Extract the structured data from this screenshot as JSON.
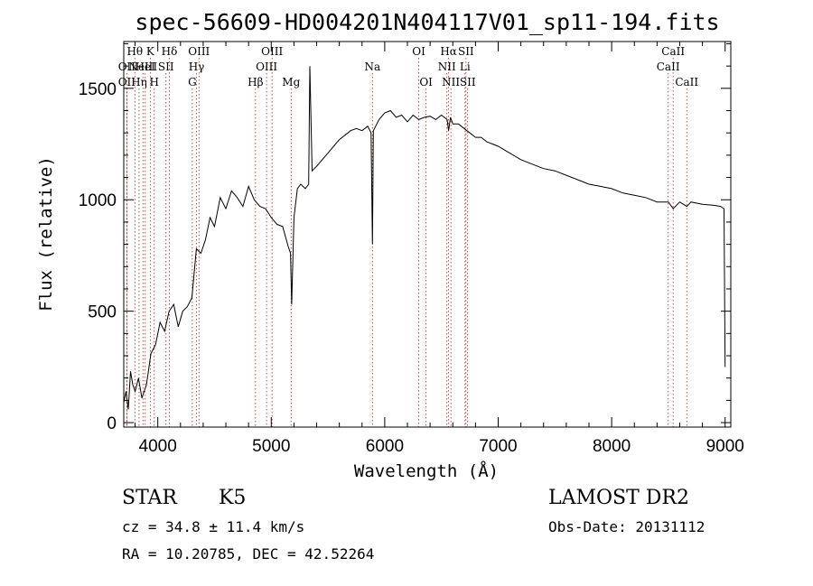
{
  "chart_data": {
    "type": "line",
    "title": "spec-56609-HD004201N404117V01_sp11-194.fits",
    "xlabel": "Wavelength (Å)",
    "ylabel": "Flux (relative)",
    "xlim": [
      3700,
      9050
    ],
    "ylim": [
      -20,
      1710
    ],
    "xticks": [
      4000,
      5000,
      6000,
      7000,
      8000,
      9000
    ],
    "yticks": [
      0,
      500,
      1000,
      1500
    ],
    "grid": false,
    "legend": "none",
    "line_color": "#000000",
    "marker_line_color": "#b22222",
    "series": [
      {
        "x": [
          3700,
          3720,
          3740,
          3760,
          3780,
          3800,
          3830,
          3860,
          3900,
          3940,
          3980,
          4020,
          4060,
          4100,
          4140,
          4180,
          4220,
          4260,
          4300,
          4340,
          4380,
          4420,
          4460,
          4500,
          4550,
          4600,
          4650,
          4700,
          4750,
          4800,
          4850,
          4900,
          4950,
          5000,
          5050,
          5100,
          5150,
          5170,
          5180,
          5200,
          5230,
          5260,
          5300,
          5330,
          5340,
          5360,
          5400,
          5450,
          5500,
          5550,
          5600,
          5650,
          5700,
          5750,
          5800,
          5850,
          5880,
          5892,
          5900,
          5910,
          5950,
          6000,
          6050,
          6100,
          6150,
          6200,
          6250,
          6300,
          6350,
          6400,
          6450,
          6500,
          6550,
          6563,
          6580,
          6600,
          6650,
          6700,
          6750,
          6800,
          6850,
          6900,
          6950,
          7000,
          7100,
          7200,
          7300,
          7400,
          7500,
          7600,
          7700,
          7800,
          7900,
          8000,
          8100,
          8200,
          8300,
          8400,
          8500,
          8542,
          8600,
          8662,
          8700,
          8800,
          8900,
          8960,
          8990,
          9000
        ],
        "y": [
          90,
          140,
          60,
          230,
          170,
          140,
          200,
          110,
          170,
          310,
          350,
          450,
          410,
          500,
          530,
          430,
          500,
          520,
          560,
          780,
          760,
          820,
          920,
          880,
          1010,
          960,
          1040,
          1010,
          970,
          1060,
          1000,
          970,
          960,
          920,
          890,
          880,
          790,
          760,
          530,
          920,
          1050,
          1070,
          1050,
          1070,
          1600,
          1130,
          1150,
          1180,
          1210,
          1240,
          1270,
          1290,
          1310,
          1320,
          1310,
          1330,
          1300,
          800,
          1310,
          1320,
          1360,
          1390,
          1400,
          1370,
          1380,
          1350,
          1380,
          1360,
          1370,
          1375,
          1360,
          1380,
          1360,
          1310,
          1370,
          1340,
          1340,
          1320,
          1300,
          1280,
          1280,
          1260,
          1250,
          1240,
          1210,
          1180,
          1160,
          1140,
          1130,
          1110,
          1090,
          1070,
          1060,
          1050,
          1030,
          1020,
          1010,
          990,
          990,
          960,
          990,
          970,
          990,
          980,
          975,
          970,
          960,
          250
        ]
      }
    ],
    "spectral_lines": [
      {
        "x": 3727,
        "label": "OII",
        "row": 1
      },
      {
        "x": 3727,
        "label": "OII",
        "row": 2
      },
      {
        "x": 3798,
        "label": "Hθ",
        "row": 0
      },
      {
        "x": 3835,
        "label": "Hη",
        "row": 2
      },
      {
        "x": 3869,
        "label": "NeIII",
        "row": 1
      },
      {
        "x": 3889,
        "label": "HeI",
        "row": 1
      },
      {
        "x": 3934,
        "label": "K",
        "row": 0
      },
      {
        "x": 3969,
        "label": "H",
        "row": 2
      },
      {
        "x": 4072,
        "label": "SII",
        "row": 1
      },
      {
        "x": 4102,
        "label": "Hδ",
        "row": 0
      },
      {
        "x": 4304,
        "label": "G",
        "row": 2
      },
      {
        "x": 4341,
        "label": "Hγ",
        "row": 1
      },
      {
        "x": 4363,
        "label": "OIII",
        "row": 0
      },
      {
        "x": 4861,
        "label": "Hβ",
        "row": 2
      },
      {
        "x": 4959,
        "label": "OIII",
        "row": 1
      },
      {
        "x": 5007,
        "label": "OIII",
        "row": 0
      },
      {
        "x": 5175,
        "label": "Mg",
        "row": 2
      },
      {
        "x": 5892,
        "label": "Na",
        "row": 1
      },
      {
        "x": 6300,
        "label": "OI",
        "row": 0
      },
      {
        "x": 6364,
        "label": "OI",
        "row": 2
      },
      {
        "x": 6548,
        "label": "NII",
        "row": 1
      },
      {
        "x": 6563,
        "label": "Hα",
        "row": 0
      },
      {
        "x": 6583,
        "label": "NII",
        "row": 2
      },
      {
        "x": 6708,
        "label": "Li",
        "row": 1
      },
      {
        "x": 6716,
        "label": "SII",
        "row": 0
      },
      {
        "x": 6731,
        "label": "SII",
        "row": 2
      },
      {
        "x": 8498,
        "label": "CaII",
        "row": 1
      },
      {
        "x": 8542,
        "label": "CaII",
        "row": 0
      },
      {
        "x": 8662,
        "label": "CaII",
        "row": 2
      }
    ]
  },
  "footer": {
    "object_type": "STAR",
    "subclass": "K5",
    "survey": "LAMOST DR2",
    "cz": "cz = 34.8 ± 11.4 km/s",
    "obs_date": "Obs-Date: 20131112",
    "coords": "RA =  10.20785, DEC =  42.52264"
  }
}
